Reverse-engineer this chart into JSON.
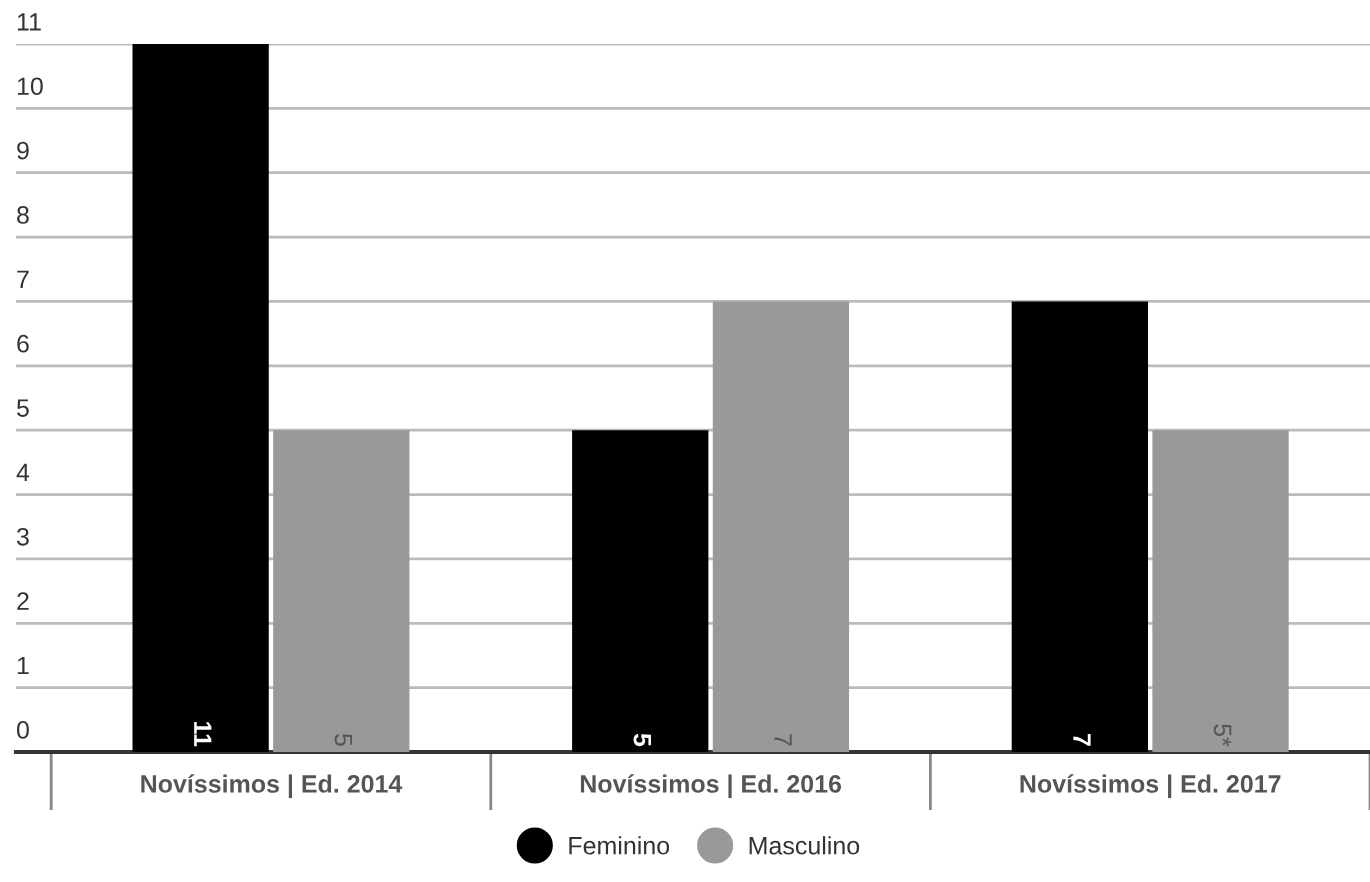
{
  "chart_data": {
    "type": "bar",
    "categories": [
      "Novíssimos | Ed. 2014",
      "Novíssimos | Ed. 2016",
      "Novíssimos | Ed. 2017"
    ],
    "series": [
      {
        "name": "Feminino",
        "color": "#000000",
        "values": [
          11,
          5,
          7
        ],
        "value_labels": [
          "11",
          "5",
          "7"
        ]
      },
      {
        "name": "Masculino",
        "color": "#999999",
        "values": [
          5,
          7,
          5
        ],
        "value_labels": [
          "5",
          "7",
          "5*"
        ]
      }
    ],
    "ylim": [
      0,
      11
    ],
    "yticks": [
      0,
      1,
      2,
      3,
      4,
      5,
      6,
      7,
      8,
      9,
      10,
      11
    ],
    "grid": "y",
    "legend": "bottom"
  }
}
